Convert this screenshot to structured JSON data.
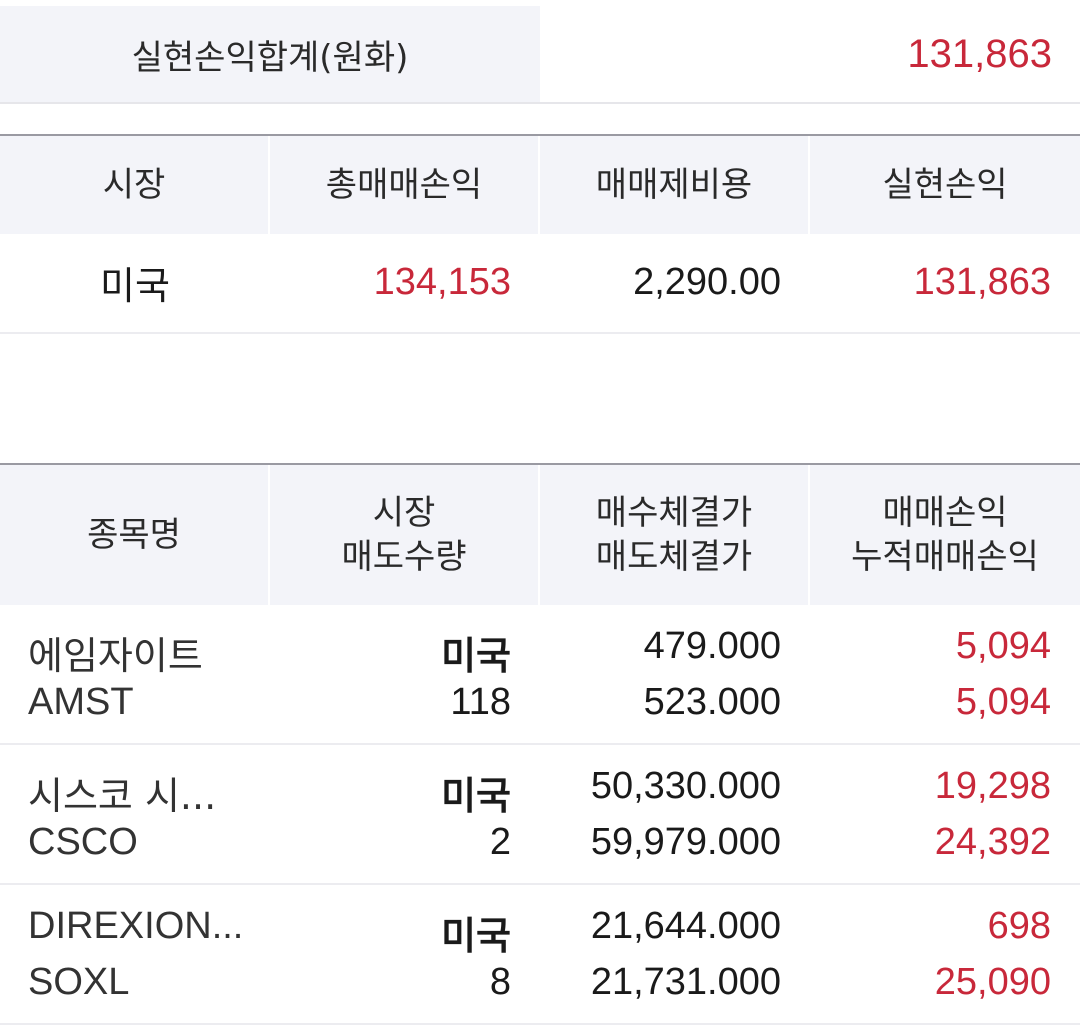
{
  "summary": {
    "label": "실현손익합계(원화)",
    "value": "131,863"
  },
  "market_table": {
    "headers": [
      "시장",
      "총매매손익",
      "매매제비용",
      "실현손익"
    ],
    "row": {
      "market": "미국",
      "total_pl": "134,153",
      "fees": "2,290.00",
      "realized_pl": "131,863"
    }
  },
  "stock_table": {
    "headers": {
      "name": "종목명",
      "market": "시장",
      "sell_qty": "매도수량",
      "buy_price": "매수체결가",
      "sell_price": "매도체결가",
      "trade_pl": "매매손익",
      "cum_pl": "누적매매손익"
    },
    "rows": [
      {
        "name": "에임자이트",
        "ticker": "AMST",
        "market": "미국",
        "qty": "118",
        "buy_price": "479.000",
        "sell_price": "523.000",
        "trade_pl": "5,094",
        "cum_pl": "5,094"
      },
      {
        "name": "시스코 시...",
        "ticker": "CSCO",
        "market": "미국",
        "qty": "2",
        "buy_price": "50,330.000",
        "sell_price": "59,979.000",
        "trade_pl": "19,298",
        "cum_pl": "24,392"
      },
      {
        "name": "DIREXION...",
        "ticker": "SOXL",
        "market": "미국",
        "qty": "8",
        "buy_price": "21,644.000",
        "sell_price": "21,731.000",
        "trade_pl": "698",
        "cum_pl": "25,090"
      }
    ]
  },
  "colors": {
    "profit": "#c8283a",
    "header_bg": "#f3f4f9"
  }
}
